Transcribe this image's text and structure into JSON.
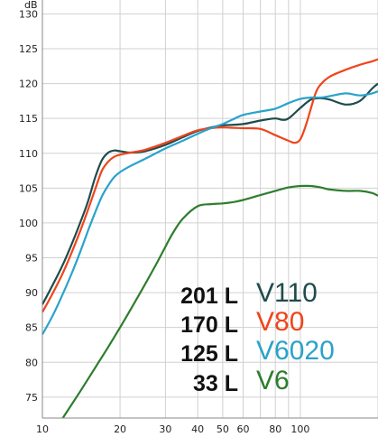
{
  "chart_data": {
    "type": "line",
    "title": "",
    "xlabel": "",
    "ylabel": "dB",
    "x_scale": "log",
    "xlim": [
      10,
      200
    ],
    "ylim": [
      72,
      132
    ],
    "grid": true,
    "x_ticks": [
      10,
      20,
      30,
      40,
      50,
      60,
      80,
      100
    ],
    "x_tick_labels": [
      "10",
      "20",
      "30",
      "40",
      "50",
      "60",
      "80",
      "100"
    ],
    "y_ticks": [
      75,
      80,
      85,
      90,
      95,
      100,
      105,
      110,
      115,
      120,
      125,
      130
    ],
    "y_tick_labels": [
      "75",
      "80",
      "85",
      "90",
      "95",
      "100",
      "105",
      "110",
      "115",
      "120",
      "125",
      "130"
    ],
    "legend_position": "bottom-right",
    "series": [
      {
        "name": "V110",
        "volume": "201 L",
        "color": "#1f4b4b",
        "x": [
          10,
          11,
          12,
          13,
          14,
          15,
          16,
          17,
          18,
          19,
          20,
          22,
          25,
          30,
          35,
          40,
          45,
          50,
          60,
          70,
          80,
          85,
          90,
          100,
          110,
          120,
          130,
          150,
          170,
          190,
          200
        ],
        "y": [
          88.3,
          91.2,
          94.0,
          97.0,
          100.0,
          103.0,
          106.5,
          109.0,
          110.1,
          110.4,
          110.3,
          110.1,
          110.3,
          111.2,
          112.3,
          113.2,
          113.7,
          114.0,
          114.2,
          114.7,
          115.0,
          114.8,
          115.0,
          116.5,
          117.7,
          117.9,
          117.7,
          117.0,
          117.5,
          119.3,
          120.0
        ]
      },
      {
        "name": "V80",
        "volume": "170 L",
        "color": "#f0441c",
        "x": [
          10,
          11,
          12,
          13,
          14,
          15,
          16,
          17,
          18,
          19,
          20,
          22,
          25,
          30,
          35,
          40,
          45,
          50,
          60,
          70,
          80,
          90,
          95,
          100,
          105,
          110,
          115,
          120,
          130,
          150,
          170,
          190,
          200
        ],
        "y": [
          87.2,
          90.0,
          92.8,
          95.8,
          98.8,
          101.8,
          104.8,
          107.5,
          108.8,
          109.5,
          109.8,
          110.1,
          110.5,
          111.5,
          112.5,
          113.3,
          113.6,
          113.7,
          113.6,
          113.5,
          112.6,
          111.8,
          111.5,
          112.0,
          114.0,
          116.5,
          118.8,
          119.9,
          121.0,
          122.0,
          122.7,
          123.2,
          123.5
        ]
      },
      {
        "name": "V6020",
        "volume": "125 L",
        "color": "#2aa2cc",
        "x": [
          10,
          11,
          12,
          13,
          14,
          15,
          16,
          17,
          18,
          19,
          20,
          22,
          25,
          30,
          35,
          40,
          45,
          50,
          55,
          60,
          70,
          80,
          90,
          100,
          110,
          120,
          130,
          150,
          170,
          190,
          200
        ],
        "y": [
          84.0,
          86.8,
          89.8,
          92.8,
          95.8,
          98.8,
          101.5,
          103.8,
          105.4,
          106.6,
          107.3,
          108.2,
          109.2,
          110.7,
          111.8,
          112.8,
          113.6,
          114.2,
          114.9,
          115.5,
          116.0,
          116.4,
          117.2,
          117.8,
          118.0,
          118.0,
          118.2,
          118.6,
          118.3,
          118.6,
          118.9
        ]
      },
      {
        "name": "V6",
        "volume": "33 L",
        "color": "#2e7d2e",
        "x": [
          12,
          14,
          16,
          18,
          20,
          22,
          25,
          28,
          30,
          32,
          35,
          40,
          45,
          50,
          55,
          60,
          70,
          80,
          90,
          100,
          110,
          120,
          130,
          150,
          170,
          190,
          200
        ],
        "y": [
          72.0,
          75.8,
          79.2,
          82.2,
          85.0,
          87.6,
          91.2,
          94.5,
          96.6,
          98.5,
          100.6,
          102.4,
          102.7,
          102.8,
          103.0,
          103.3,
          104.0,
          104.6,
          105.1,
          105.3,
          105.3,
          105.1,
          104.8,
          104.6,
          104.6,
          104.3,
          103.9
        ]
      }
    ]
  }
}
